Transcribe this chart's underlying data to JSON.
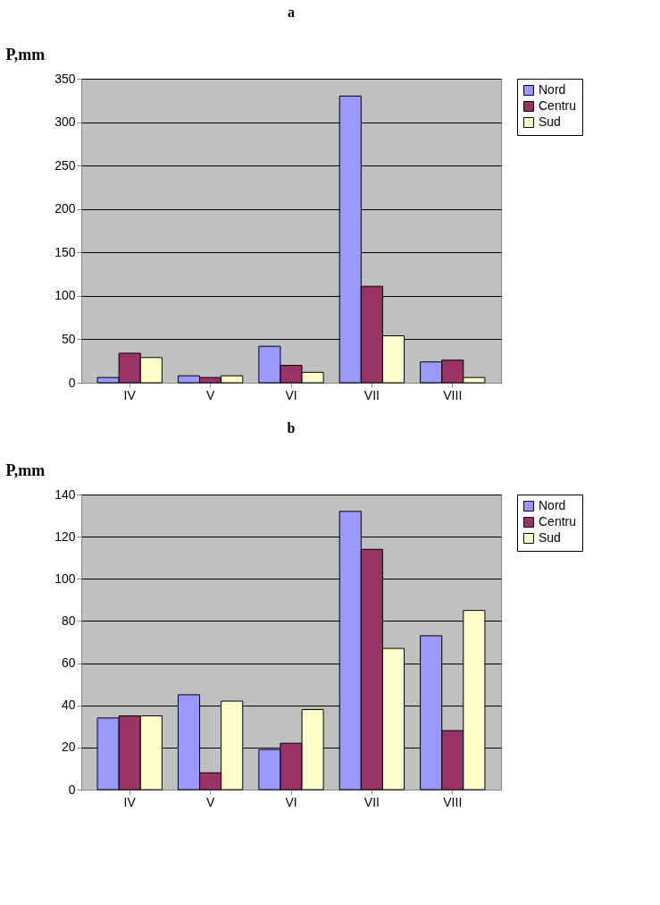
{
  "chart_data": [
    {
      "type": "bar",
      "title": "a",
      "ylabel": "P,mm",
      "categories": [
        "IV",
        "V",
        "VI",
        "VII",
        "VIII"
      ],
      "series": [
        {
          "name": "Nord",
          "color": "#9999ff",
          "values": [
            6,
            8,
            42,
            330,
            24
          ]
        },
        {
          "name": "Centru",
          "color": "#993366",
          "values": [
            34,
            6,
            20,
            111,
            26
          ]
        },
        {
          "name": "Sud",
          "color": "#ffffcc",
          "values": [
            29,
            8,
            12,
            54,
            6
          ]
        }
      ],
      "ylim": [
        0,
        350
      ],
      "yticks": [
        0,
        50,
        100,
        150,
        200,
        250,
        300,
        350
      ],
      "grid": "y",
      "legend": "right"
    },
    {
      "type": "bar",
      "title": "b",
      "ylabel": "P,mm",
      "categories": [
        "IV",
        "V",
        "VI",
        "VII",
        "VIII"
      ],
      "series": [
        {
          "name": "Nord",
          "color": "#9999ff",
          "values": [
            34,
            45,
            19,
            132,
            73
          ]
        },
        {
          "name": "Centru",
          "color": "#993366",
          "values": [
            35,
            8,
            22,
            114,
            28
          ]
        },
        {
          "name": "Sud",
          "color": "#ffffcc",
          "values": [
            35,
            42,
            38,
            67,
            85
          ]
        }
      ],
      "ylim": [
        0,
        140
      ],
      "yticks": [
        0,
        20,
        40,
        60,
        80,
        100,
        120,
        140
      ],
      "grid": "y",
      "legend": "right"
    }
  ]
}
